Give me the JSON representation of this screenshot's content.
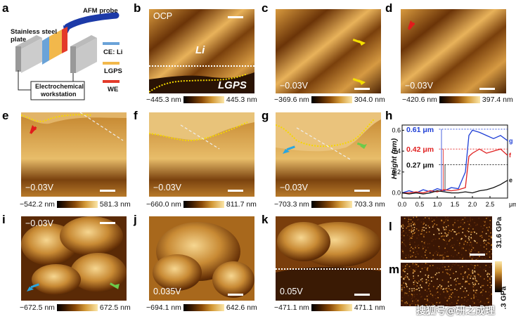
{
  "panel_labels": {
    "a": "a",
    "b": "b",
    "c": "c",
    "d": "d",
    "e": "e",
    "f": "f",
    "g": "g",
    "h": "h",
    "i": "i",
    "j": "j",
    "k": "k",
    "l": "l",
    "m": "m"
  },
  "schematic": {
    "afm_probe": "AFM probe",
    "stainless_line1": "Stainless steel",
    "stainless_line2": "plate",
    "legend": [
      {
        "label": "CE: Li",
        "color": "#6aa3d8"
      },
      {
        "label": "LGPS",
        "color": "#f2b84b"
      },
      {
        "label": "WE",
        "color": "#e33a2a"
      }
    ],
    "workstation_line1": "Electrochemical",
    "workstation_line2": "workstation"
  },
  "panels": {
    "b": {
      "voltage": "OCP",
      "region_top": "Li",
      "region_bottom": "LGPS",
      "cmin": "−445.3 nm",
      "cmax": "445.3 nm"
    },
    "c": {
      "voltage": "−0.03V",
      "cmin": "−369.6 nm",
      "cmax": "304.0 nm"
    },
    "d": {
      "voltage": "−0.03V",
      "cmin": "−420.6 nm",
      "cmax": "397.4 nm"
    },
    "e": {
      "voltage": "−0.03V",
      "cmin": "−542.2 nm",
      "cmax": "581.3 nm"
    },
    "f": {
      "voltage": "−0.03V",
      "cmin": "−660.0 nm",
      "cmax": "811.7 nm"
    },
    "g": {
      "voltage": "−0.03V",
      "cmin": "−703.3 nm",
      "cmax": "703.3 nm"
    },
    "i": {
      "voltage": "−0.03V",
      "cmin": "−672.5 nm",
      "cmax": "672.5 nm"
    },
    "j": {
      "voltage": "0.035V",
      "cmin": "−694.1 nm",
      "cmax": "642.6 nm"
    },
    "k": {
      "voltage": "0.05V",
      "cmin": "−471.1 nm",
      "cmax": "471.1 nm"
    },
    "lm": {
      "cmax": "31.6 GPa",
      "cmin": ".3 GPa"
    }
  },
  "chart_data": {
    "type": "line",
    "xlabel": "μm",
    "ylabel": "Height (μm)",
    "xlim": [
      0,
      3.0
    ],
    "ylim": [
      -0.05,
      0.65
    ],
    "xticks": [
      "0.0",
      "0.5",
      "1.0",
      "1.5",
      "2.0",
      "2.5"
    ],
    "yticks": [
      "0.0",
      "0.2",
      "0.4",
      "0.6"
    ],
    "annotations": [
      {
        "text": "0.61 μm",
        "color": "#1f3fd6"
      },
      {
        "text": "0.42 μm",
        "color": "#e02020"
      },
      {
        "text": "0.27 μm",
        "color": "#111111"
      }
    ],
    "series": [
      {
        "name": "g",
        "color": "#1f3fd6",
        "x": [
          0,
          0.2,
          0.4,
          0.6,
          0.8,
          1.0,
          1.2,
          1.4,
          1.6,
          1.8,
          1.9,
          2.0,
          2.2,
          2.4,
          2.6,
          2.8,
          3.0
        ],
        "y": [
          0.0,
          0.02,
          0.0,
          0.03,
          0.01,
          0.04,
          0.02,
          0.05,
          0.04,
          0.2,
          0.55,
          0.6,
          0.58,
          0.55,
          0.52,
          0.55,
          0.5
        ]
      },
      {
        "name": "f",
        "color": "#e02020",
        "x": [
          0,
          0.2,
          0.4,
          0.6,
          0.8,
          1.0,
          1.2,
          1.4,
          1.6,
          1.8,
          1.9,
          2.0,
          2.2,
          2.4,
          2.6,
          2.8,
          3.0
        ],
        "y": [
          0.0,
          0.0,
          0.01,
          0.0,
          0.02,
          0.01,
          0.03,
          0.02,
          0.03,
          0.05,
          0.35,
          0.38,
          0.42,
          0.38,
          0.4,
          0.42,
          0.36
        ]
      },
      {
        "name": "e",
        "color": "#111111",
        "x": [
          0,
          0.2,
          0.4,
          0.6,
          0.8,
          1.0,
          1.2,
          1.4,
          1.6,
          1.8,
          2.0,
          2.2,
          2.4,
          2.6,
          2.8,
          3.0
        ],
        "y": [
          0.0,
          -0.01,
          0.0,
          -0.01,
          0.0,
          0.02,
          0.01,
          0.0,
          0.0,
          0.01,
          0.0,
          0.02,
          0.03,
          0.05,
          0.08,
          0.12
        ]
      }
    ]
  },
  "watermark": "搜狐号@研之成理"
}
